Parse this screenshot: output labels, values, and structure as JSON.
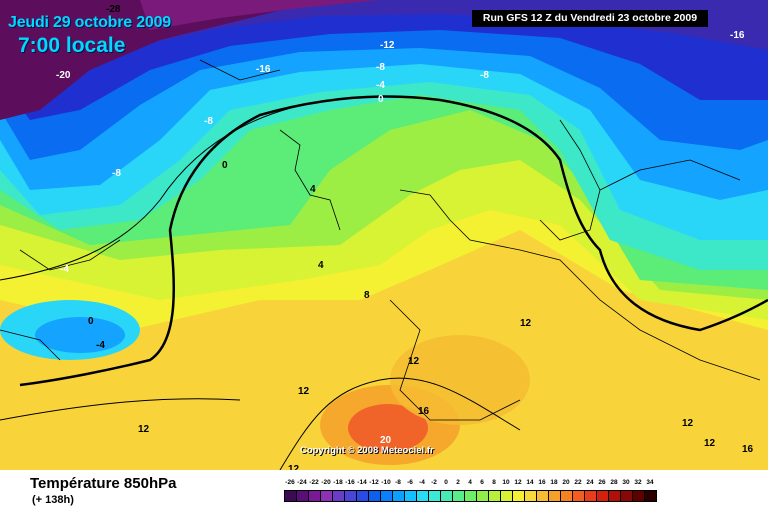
{
  "header": {
    "date": "Jeudi 29 octobre 2009",
    "time": "7:00 locale",
    "run": "Run GFS 12 Z du Vendredi 23 octobre 2009",
    "copyright": "Copyright © 2008 Meteociel.fr"
  },
  "footer": {
    "title": "Température 850hPa",
    "forecast": "(+ 138h)"
  },
  "contour_labels": [
    "-28",
    "-20",
    "-16",
    "-12",
    "-8",
    "-8",
    "-4",
    "0",
    "-8",
    "-16",
    "-8",
    "0",
    "4",
    "-4",
    "4",
    "8",
    "0",
    "-4",
    "12",
    "12",
    "12",
    "12",
    "12",
    "16",
    "16",
    "20",
    "12",
    "12"
  ],
  "legend": {
    "values": [
      "-26",
      "-24",
      "-22",
      "-20",
      "-18",
      "-16",
      "-14",
      "-12",
      "-10",
      "-8",
      "-6",
      "-4",
      "-2",
      "0",
      "2",
      "4",
      "6",
      "8",
      "10",
      "12",
      "14",
      "16",
      "18",
      "20",
      "22",
      "24",
      "26",
      "28",
      "30",
      "32",
      "34"
    ],
    "colors": [
      "#3c0a55",
      "#5a0f78",
      "#7a1896",
      "#8c32b4",
      "#6a3cc8",
      "#4a44d8",
      "#2a4ce6",
      "#1060f0",
      "#0a80ff",
      "#0aa0ff",
      "#14c0ff",
      "#28dcf6",
      "#3ce8d8",
      "#46eab4",
      "#58ec8c",
      "#6eee64",
      "#90f048",
      "#b4f03c",
      "#d8f234",
      "#f6f032",
      "#f8d83a",
      "#f6bc32",
      "#f6a02a",
      "#f68024",
      "#f45c20",
      "#ea3c1a",
      "#d42010",
      "#b01008",
      "#880808",
      "#5e0000",
      "#2a0000"
    ]
  },
  "map_colors": {
    "deep_purple": "#5c0e5c",
    "purple": "#7a1a7a",
    "deep_blue": "#2030d0",
    "blue": "#0a6cf0",
    "light_blue": "#14a4ff",
    "cyan": "#2ad6f8",
    "teal": "#3ce8c8",
    "green": "#5cec78",
    "lime": "#9cee44",
    "yellow": "#f4f032",
    "gold": "#f8d43a",
    "orange": "#f6a82c",
    "red_orange": "#f0642a"
  }
}
